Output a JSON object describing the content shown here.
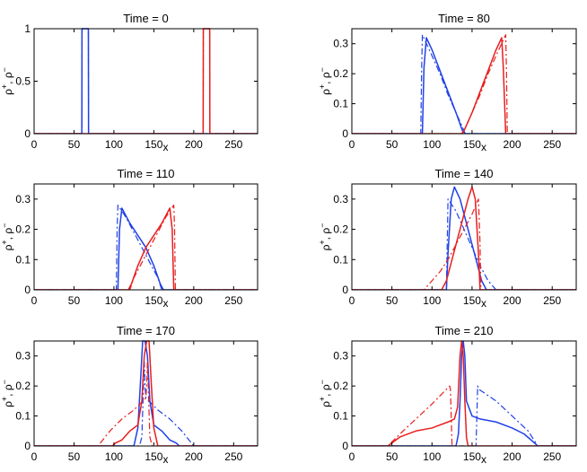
{
  "colors": {
    "blue": "#2040e8",
    "red": "#e81e1e",
    "axis": "#000000"
  },
  "ylabel_parts": {
    "rho": "ρ",
    "plus": "+",
    "sep": ", ",
    "minus": "−"
  },
  "chart_data": [
    {
      "type": "line",
      "title": "Time = 0",
      "xlabel": "x",
      "xlim": [
        0,
        280
      ],
      "ylim": [
        0,
        1
      ],
      "xticks": [
        0,
        50,
        100,
        150,
        200,
        250
      ],
      "yticks": [
        0,
        0.5,
        1
      ],
      "series": [
        {
          "color": "blue",
          "style": "solid",
          "x": [
            0,
            59.8,
            60,
            60.2,
            67.8,
            68,
            68.2,
            280
          ],
          "y": [
            0,
            0,
            1,
            1,
            1,
            1,
            0,
            0
          ]
        },
        {
          "color": "blue",
          "style": "dashdot",
          "x": [
            0,
            59.8,
            60,
            60.2,
            67.8,
            68,
            68.2,
            280
          ],
          "y": [
            0,
            0,
            1,
            1,
            1,
            1,
            0,
            0
          ]
        },
        {
          "color": "red",
          "style": "solid",
          "x": [
            0,
            211.8,
            212,
            212.2,
            219.8,
            220,
            220.2,
            280
          ],
          "y": [
            0,
            0,
            1,
            1,
            1,
            1,
            0,
            0
          ]
        },
        {
          "color": "red",
          "style": "dashdot",
          "x": [
            0,
            211.8,
            212,
            212.2,
            219.8,
            220,
            220.2,
            280
          ],
          "y": [
            0,
            0,
            1,
            1,
            1,
            1,
            0,
            0
          ]
        }
      ]
    },
    {
      "type": "line",
      "title": "Time = 80",
      "xlabel": "x",
      "xlim": [
        0,
        280
      ],
      "ylim": [
        0,
        0.35
      ],
      "xticks": [
        0,
        50,
        100,
        150,
        200,
        250
      ],
      "yticks": [
        0,
        0.1,
        0.2,
        0.3
      ],
      "series": [
        {
          "color": "blue",
          "style": "solid",
          "x": [
            0,
            88,
            90,
            93,
            100,
            110,
            120,
            130,
            138,
            142,
            280
          ],
          "y": [
            0,
            0,
            0.22,
            0.32,
            0.28,
            0.21,
            0.14,
            0.07,
            0.01,
            0,
            0
          ]
        },
        {
          "color": "blue",
          "style": "dashdot",
          "x": [
            0,
            86,
            87,
            88,
            100,
            110,
            120,
            130,
            140,
            141,
            280
          ],
          "y": [
            0,
            0,
            0.2,
            0.33,
            0.26,
            0.2,
            0.13,
            0.07,
            0.01,
            0,
            0
          ]
        },
        {
          "color": "red",
          "style": "solid",
          "x": [
            0,
            137,
            140,
            150,
            160,
            170,
            180,
            187,
            189,
            192,
            280
          ],
          "y": [
            0,
            0,
            0.01,
            0.07,
            0.14,
            0.21,
            0.28,
            0.32,
            0.22,
            0,
            0
          ]
        },
        {
          "color": "red",
          "style": "dashdot",
          "x": [
            0,
            138,
            140,
            150,
            160,
            170,
            180,
            192,
            193,
            194,
            280
          ],
          "y": [
            0,
            0,
            0.01,
            0.07,
            0.13,
            0.2,
            0.26,
            0.33,
            0.2,
            0,
            0
          ]
        }
      ]
    },
    {
      "type": "line",
      "title": "Time = 110",
      "xlabel": "x",
      "xlim": [
        0,
        280
      ],
      "ylim": [
        0,
        0.35
      ],
      "xticks": [
        0,
        50,
        100,
        150,
        200,
        250
      ],
      "yticks": [
        0,
        0.1,
        0.2,
        0.3
      ],
      "series": [
        {
          "color": "blue",
          "style": "solid",
          "x": [
            0,
            105,
            107,
            110,
            120,
            130,
            140,
            150,
            158,
            162,
            280
          ],
          "y": [
            0,
            0,
            0.2,
            0.27,
            0.22,
            0.18,
            0.14,
            0.08,
            0.02,
            0,
            0
          ]
        },
        {
          "color": "blue",
          "style": "dashdot",
          "x": [
            0,
            103,
            104,
            105,
            115,
            125,
            135,
            145,
            155,
            160,
            280
          ],
          "y": [
            0,
            0,
            0.2,
            0.28,
            0.24,
            0.19,
            0.14,
            0.09,
            0.04,
            0,
            0
          ]
        },
        {
          "color": "red",
          "style": "solid",
          "x": [
            0,
            118,
            122,
            130,
            140,
            150,
            160,
            170,
            173,
            175,
            280
          ],
          "y": [
            0,
            0,
            0.02,
            0.08,
            0.14,
            0.18,
            0.22,
            0.27,
            0.2,
            0,
            0
          ]
        },
        {
          "color": "red",
          "style": "dashdot",
          "x": [
            0,
            120,
            125,
            135,
            145,
            155,
            165,
            175,
            176,
            177,
            280
          ],
          "y": [
            0,
            0,
            0.04,
            0.09,
            0.14,
            0.19,
            0.24,
            0.28,
            0.2,
            0,
            0
          ]
        }
      ]
    },
    {
      "type": "line",
      "title": "Time = 140",
      "xlabel": "x",
      "xlim": [
        0,
        280
      ],
      "ylim": [
        0,
        0.35
      ],
      "xticks": [
        0,
        50,
        100,
        150,
        200,
        250
      ],
      "yticks": [
        0,
        0.1,
        0.2,
        0.3
      ],
      "series": [
        {
          "color": "blue",
          "style": "solid",
          "x": [
            0,
            118,
            120,
            124,
            128,
            135,
            145,
            155,
            162,
            168,
            280
          ],
          "y": [
            0,
            0,
            0.12,
            0.3,
            0.34,
            0.3,
            0.2,
            0.1,
            0.03,
            0,
            0
          ]
        },
        {
          "color": "blue",
          "style": "dashdot",
          "x": [
            0,
            118,
            119,
            120,
            130,
            140,
            150,
            160,
            170,
            180,
            280
          ],
          "y": [
            0,
            0,
            0.15,
            0.3,
            0.26,
            0.2,
            0.14,
            0.08,
            0.03,
            0,
            0
          ]
        },
        {
          "color": "red",
          "style": "solid",
          "x": [
            0,
            112,
            118,
            125,
            135,
            145,
            150,
            154,
            158,
            160,
            280
          ],
          "y": [
            0,
            0,
            0.03,
            0.1,
            0.2,
            0.3,
            0.34,
            0.3,
            0.12,
            0,
            0
          ]
        },
        {
          "color": "red",
          "style": "dashdot",
          "x": [
            0,
            90,
            100,
            110,
            120,
            130,
            140,
            150,
            158,
            160,
            161,
            280
          ],
          "y": [
            0,
            0,
            0.03,
            0.06,
            0.1,
            0.15,
            0.2,
            0.25,
            0.3,
            0.15,
            0,
            0
          ]
        }
      ]
    },
    {
      "type": "line",
      "title": "Time = 170",
      "xlabel": "x",
      "xlim": [
        0,
        280
      ],
      "ylim": [
        0,
        0.35
      ],
      "xticks": [
        0,
        50,
        100,
        150,
        200,
        250
      ],
      "yticks": [
        0,
        0.1,
        0.2,
        0.3
      ],
      "series": [
        {
          "color": "blue",
          "style": "solid",
          "x": [
            0,
            125,
            130,
            133,
            136,
            139,
            142,
            145,
            150,
            160,
            170,
            178,
            182,
            280
          ],
          "y": [
            0,
            0,
            0.06,
            0.2,
            0.35,
            0.35,
            0.3,
            0.15,
            0.07,
            0.05,
            0.02,
            0.01,
            0,
            0
          ]
        },
        {
          "color": "blue",
          "style": "dashdot",
          "x": [
            0,
            132,
            135,
            137,
            138,
            139,
            140,
            155,
            170,
            185,
            200,
            280
          ],
          "y": [
            0,
            0,
            0.03,
            0.2,
            0.28,
            0.2,
            0.16,
            0.12,
            0.09,
            0.05,
            0,
            0
          ]
        },
        {
          "color": "red",
          "style": "solid",
          "x": [
            0,
            98,
            102,
            110,
            120,
            130,
            135,
            138,
            141,
            144,
            147,
            150,
            155,
            280
          ],
          "y": [
            0,
            0,
            0.01,
            0.02,
            0.05,
            0.07,
            0.15,
            0.3,
            0.35,
            0.35,
            0.2,
            0.06,
            0,
            0
          ]
        },
        {
          "color": "red",
          "style": "dashdot",
          "x": [
            0,
            80,
            95,
            110,
            125,
            140,
            141,
            142,
            143,
            145,
            148,
            280
          ],
          "y": [
            0,
            0,
            0.05,
            0.09,
            0.12,
            0.16,
            0.2,
            0.28,
            0.2,
            0.03,
            0,
            0
          ]
        }
      ]
    },
    {
      "type": "line",
      "title": "Time = 210",
      "xlabel": "x",
      "xlim": [
        0,
        280
      ],
      "ylim": [
        0,
        0.35
      ],
      "xticks": [
        0,
        50,
        100,
        150,
        200,
        250
      ],
      "yticks": [
        0,
        0.1,
        0.2,
        0.3
      ],
      "series": [
        {
          "color": "blue",
          "style": "solid",
          "x": [
            0,
            130,
            133,
            135,
            137,
            139,
            141,
            143,
            150,
            160,
            180,
            200,
            215,
            228,
            232,
            280
          ],
          "y": [
            0,
            0,
            0.04,
            0.15,
            0.3,
            0.35,
            0.3,
            0.15,
            0.1,
            0.09,
            0.08,
            0.06,
            0.04,
            0.01,
            0,
            0
          ]
        },
        {
          "color": "blue",
          "style": "dashdot",
          "x": [
            0,
            155,
            156,
            157,
            158,
            180,
            200,
            220,
            232,
            280
          ],
          "y": [
            0,
            0,
            0.1,
            0.2,
            0.19,
            0.15,
            0.1,
            0.05,
            0,
            0
          ]
        },
        {
          "color": "red",
          "style": "solid",
          "x": [
            0,
            45,
            50,
            60,
            80,
            100,
            120,
            128,
            132,
            135,
            137,
            139,
            141,
            143,
            145,
            280
          ],
          "y": [
            0,
            0,
            0.01,
            0.03,
            0.05,
            0.06,
            0.08,
            0.09,
            0.13,
            0.3,
            0.35,
            0.3,
            0.15,
            0.03,
            0,
            0
          ]
        },
        {
          "color": "red",
          "style": "dashdot",
          "x": [
            0,
            45,
            60,
            80,
            100,
            122,
            123,
            124,
            125,
            280
          ],
          "y": [
            0,
            0,
            0.04,
            0.09,
            0.14,
            0.2,
            0.19,
            0.1,
            0,
            0
          ]
        }
      ]
    }
  ]
}
